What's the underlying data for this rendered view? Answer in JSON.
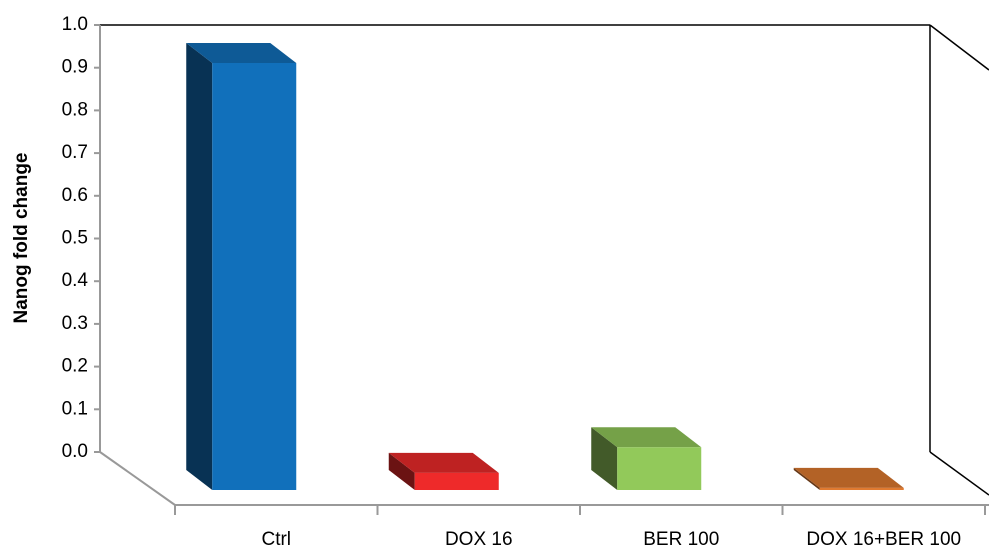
{
  "chart_data": {
    "type": "bar3d",
    "y_label": "Nanog fold change",
    "categories": [
      "Ctrl",
      "DOX 16",
      "BER 100",
      "DOX 16+BER 100"
    ],
    "values": [
      1.0,
      0.04,
      0.1,
      0.005
    ],
    "colors": [
      "#1170bb",
      "#ee2a2a",
      "#92c95a",
      "#e07a30"
    ],
    "ylim": [
      0,
      1.0
    ],
    "yticks": [
      {
        "value": 0,
        "label": "0.0"
      },
      0.1,
      0.2,
      0.3,
      0.4,
      0.5,
      0.6,
      0.7,
      0.8,
      0.9,
      {
        "value": 1.0,
        "label": "1.0"
      }
    ],
    "grid": false
  }
}
